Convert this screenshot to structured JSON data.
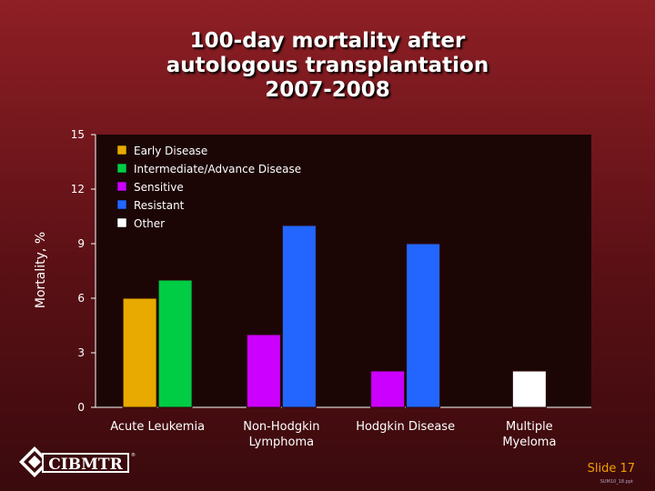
{
  "slide": {
    "title_lines": [
      "100-day mortality after",
      "autologous transplantation",
      "2007-2008"
    ],
    "slide_label": "Slide 17",
    "slide_code": "SUM10_18.ppt",
    "logo_text": "CIBMTR"
  },
  "chart_data": {
    "type": "bar",
    "title": "100-day mortality after autologous transplantation 2007-2008",
    "ylabel": "Mortality, %",
    "xlabel": "",
    "ylim": [
      0,
      15
    ],
    "yticks": [
      0,
      3,
      6,
      9,
      12,
      15
    ],
    "grid": false,
    "legend_position": "top-left",
    "legend": [
      {
        "name": "Early Disease",
        "color": "#e8aa00"
      },
      {
        "name": "Intermediate/Advance Disease",
        "color": "#00cc44"
      },
      {
        "name": "Sensitive",
        "color": "#cc00ff"
      },
      {
        "name": "Resistant",
        "color": "#2266ff"
      },
      {
        "name": "Other",
        "color": "#ffffff"
      }
    ],
    "categories": [
      {
        "label_lines": [
          "Acute Leukemia"
        ],
        "bars": [
          {
            "series": "Early Disease",
            "value": 6
          },
          {
            "series": "Intermediate/Advance Disease",
            "value": 7
          }
        ]
      },
      {
        "label_lines": [
          "Non-Hodgkin",
          "Lymphoma"
        ],
        "bars": [
          {
            "series": "Sensitive",
            "value": 4
          },
          {
            "series": "Resistant",
            "value": 10
          }
        ]
      },
      {
        "label_lines": [
          "Hodgkin Disease"
        ],
        "bars": [
          {
            "series": "Sensitive",
            "value": 2
          },
          {
            "series": "Resistant",
            "value": 9
          }
        ]
      },
      {
        "label_lines": [
          "Multiple",
          "Myeloma"
        ],
        "bars": [
          {
            "series": "Other",
            "value": 2
          }
        ]
      }
    ],
    "colors": {
      "plot_background": "#1c0605",
      "axis": "#ffffff",
      "text": "#ffffff"
    }
  }
}
